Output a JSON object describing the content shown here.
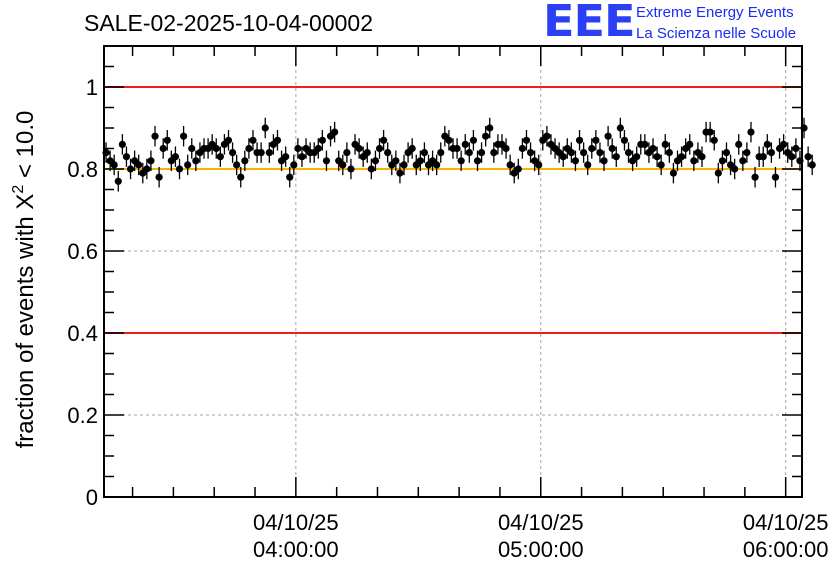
{
  "header": {
    "run_id": "SALE-02-2025-10-04-00002",
    "logo_text": "EEE",
    "brand_line1": "Extreme Energy Events",
    "brand_line2": "La Scienza nelle Scuole"
  },
  "colors": {
    "red_line": "#e8211c",
    "orange_line": "#f6b400",
    "grid": "#a6a6a6",
    "points": "#000000",
    "logo": "#2b3ff5"
  },
  "chart_data": {
    "type": "scatter",
    "title": "SALE-02-2025-10-04-00002",
    "xlabel": "",
    "ylabel_prefix": "fraction of events with ",
    "ylabel_symbol": "X",
    "ylabel_exponent": "2",
    "ylabel_suffix": " < 10.0",
    "x_unit": "minutes after 2025-10-04 03:13",
    "xlim": [
      0,
      171
    ],
    "ylim": [
      0,
      1.1
    ],
    "y_ticks": [
      0,
      0.2,
      0.4,
      0.6,
      0.8,
      1
    ],
    "y_tick_labels": [
      "0",
      "0.2",
      "0.4",
      "0.6",
      "0.8",
      "1"
    ],
    "x_ticks": [
      {
        "x": 47,
        "date": "04/10/25",
        "time": "04:00:00"
      },
      {
        "x": 107,
        "date": "04/10/25",
        "time": "05:00:00"
      },
      {
        "x": 167,
        "date": "04/10/25",
        "time": "06:00:00"
      }
    ],
    "reference_lines": [
      {
        "y": 1.0,
        "color": "red"
      },
      {
        "y": 0.8,
        "color": "orange"
      },
      {
        "y": 0.4,
        "color": "red"
      }
    ],
    "error": 0.025,
    "series": [
      {
        "name": "fraction",
        "x_start": 0.5,
        "x_step": 1,
        "values": [
          0.84,
          0.82,
          0.81,
          0.77,
          0.86,
          0.83,
          0.8,
          0.82,
          0.81,
          0.79,
          0.8,
          0.82,
          0.88,
          0.78,
          0.85,
          0.87,
          0.82,
          0.83,
          0.8,
          0.88,
          0.81,
          0.85,
          0.82,
          0.84,
          0.85,
          0.85,
          0.86,
          0.85,
          0.83,
          0.86,
          0.87,
          0.84,
          0.81,
          0.78,
          0.82,
          0.85,
          0.87,
          0.84,
          0.84,
          0.9,
          0.84,
          0.86,
          0.87,
          0.82,
          0.83,
          0.78,
          0.81,
          0.85,
          0.83,
          0.85,
          0.84,
          0.84,
          0.85,
          0.87,
          0.82,
          0.88,
          0.89,
          0.82,
          0.81,
          0.84,
          0.8,
          0.86,
          0.85,
          0.83,
          0.84,
          0.8,
          0.82,
          0.85,
          0.87,
          0.84,
          0.81,
          0.82,
          0.79,
          0.81,
          0.84,
          0.85,
          0.81,
          0.82,
          0.84,
          0.81,
          0.82,
          0.81,
          0.84,
          0.88,
          0.87,
          0.85,
          0.85,
          0.82,
          0.86,
          0.84,
          0.87,
          0.82,
          0.84,
          0.88,
          0.9,
          0.84,
          0.86,
          0.86,
          0.85,
          0.81,
          0.79,
          0.8,
          0.85,
          0.87,
          0.84,
          0.82,
          0.81,
          0.87,
          0.88,
          0.86,
          0.85,
          0.84,
          0.83,
          0.85,
          0.84,
          0.82,
          0.87,
          0.84,
          0.81,
          0.85,
          0.87,
          0.84,
          0.82,
          0.88,
          0.85,
          0.83,
          0.9,
          0.87,
          0.84,
          0.82,
          0.83,
          0.86,
          0.86,
          0.84,
          0.85,
          0.83,
          0.81,
          0.86,
          0.84,
          0.79,
          0.82,
          0.83,
          0.85,
          0.86,
          0.82,
          0.84,
          0.83,
          0.89,
          0.89,
          0.87,
          0.79,
          0.82,
          0.84,
          0.81,
          0.8,
          0.86,
          0.82,
          0.84,
          0.89,
          0.78,
          0.83,
          0.83,
          0.86,
          0.84,
          0.78,
          0.85,
          0.86,
          0.84,
          0.83,
          0.85,
          0.82,
          0.9,
          0.83,
          0.81
        ]
      }
    ]
  }
}
